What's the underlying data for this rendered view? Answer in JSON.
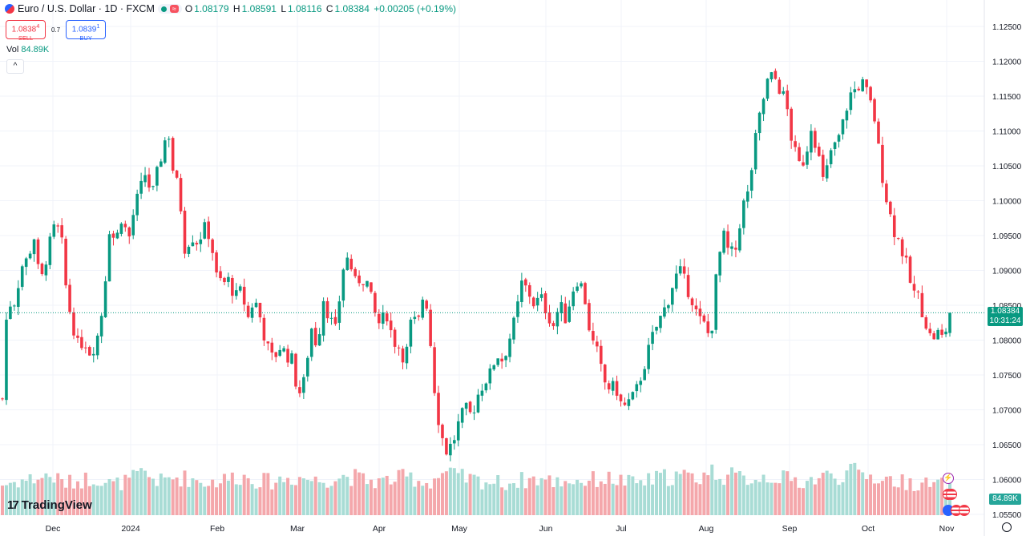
{
  "header": {
    "symbol": "Euro / U.S. Dollar · 1D · FXCM",
    "wave_icon": "≈",
    "o_label": "O",
    "o": "1.08179",
    "h_label": "H",
    "h": "1.08591",
    "l_label": "L",
    "l": "1.08116",
    "c_label": "C",
    "c": "1.08384",
    "change": "+0.00205 (+0.19%)"
  },
  "trade": {
    "sell_price": "1.0838",
    "sell_sup": "4",
    "sell_label": "SELL",
    "spread": "0.7",
    "buy_price": "1.0839",
    "buy_sup": "1",
    "buy_label": "BUY"
  },
  "volume": {
    "label": "Vol",
    "value": "84.89K"
  },
  "collapse_icon": "chevron-up-icon",
  "collapse_glyph": "^",
  "last_price": {
    "price": "1.08384",
    "countdown": "10:31:24"
  },
  "logo": {
    "mark": "17",
    "text": "TradingView"
  },
  "colors": {
    "up": "#089981",
    "down": "#f23645",
    "vol_up": "#a8dcd5",
    "vol_down": "#f4a7ab",
    "grid": "#f0f3fa"
  },
  "chart_data": {
    "type": "candlestick",
    "y_axis_ticks": [
      "1.12500",
      "1.12000",
      "1.11500",
      "1.11000",
      "1.10500",
      "1.10000",
      "1.09500",
      "1.09000",
      "1.08500",
      "1.08000",
      "1.07500",
      "1.07000",
      "1.06500",
      "1.06000",
      "1.05500"
    ],
    "x_axis_ticks": [
      "Dec",
      "2024",
      "Feb",
      "Mar",
      "Apr",
      "May",
      "Jun",
      "Jul",
      "Aug",
      "Sep",
      "Oct",
      "Nov"
    ],
    "ylim": [
      1.0535,
      1.1275
    ],
    "close_path": [
      [
        0,
        1.0715
      ],
      [
        3,
        1.085
      ],
      [
        8,
        1.0855
      ],
      [
        12,
        1.0905
      ],
      [
        16,
        1.0915
      ],
      [
        20,
        1.095
      ],
      [
        24,
        1.0875
      ],
      [
        28,
        1.092
      ],
      [
        33,
        1.096
      ],
      [
        37,
        1.0955
      ],
      [
        41,
        1.086
      ],
      [
        45,
        1.082
      ],
      [
        48,
        1.079
      ],
      [
        52,
        1.08
      ],
      [
        56,
        1.078
      ],
      [
        60,
        1.08
      ],
      [
        64,
        1.085
      ],
      [
        68,
        1.096
      ],
      [
        72,
        1.094
      ],
      [
        76,
        1.098
      ],
      [
        80,
        1.094
      ],
      [
        84,
        1.099
      ],
      [
        87,
        1.101
      ],
      [
        91,
        1.104
      ],
      [
        95,
        1.1005
      ],
      [
        99,
        1.1045
      ],
      [
        103,
        1.1085
      ],
      [
        106,
        1.1095
      ],
      [
        109,
        1.103
      ],
      [
        112,
        1.102
      ],
      [
        116,
        1.093
      ],
      [
        120,
        1.095
      ],
      [
        124,
        1.094
      ],
      [
        128,
        1.096
      ],
      [
        132,
        1.095
      ],
      [
        136,
        1.089
      ],
      [
        140,
        1.088
      ],
      [
        144,
        1.0885
      ],
      [
        148,
        1.086
      ],
      [
        152,
        1.087
      ],
      [
        156,
        1.083
      ],
      [
        160,
        1.086
      ],
      [
        164,
        1.083
      ],
      [
        168,
        1.079
      ],
      [
        172,
        1.077
      ],
      [
        176,
        1.079
      ],
      [
        180,
        1.078
      ],
      [
        184,
        1.077
      ],
      [
        188,
        1.072
      ],
      [
        192,
        1.074
      ],
      [
        196,
        1.082
      ],
      [
        200,
        1.079
      ],
      [
        204,
        1.086
      ],
      [
        208,
        1.083
      ],
      [
        212,
        1.081
      ],
      [
        216,
        1.09
      ],
      [
        220,
        1.092
      ],
      [
        224,
        1.088
      ],
      [
        228,
        1.089
      ],
      [
        232,
        1.088
      ],
      [
        236,
        1.084
      ],
      [
        240,
        1.082
      ],
      [
        244,
        1.084
      ],
      [
        248,
        1.08
      ],
      [
        252,
        1.079
      ],
      [
        256,
        1.077
      ],
      [
        260,
        1.083
      ],
      [
        264,
        1.082
      ],
      [
        267,
        1.086
      ],
      [
        270,
        1.085
      ],
      [
        274,
        1.074
      ],
      [
        278,
        1.067
      ],
      [
        282,
        1.064
      ],
      [
        286,
        1.065
      ],
      [
        290,
        1.068
      ],
      [
        294,
        1.07
      ],
      [
        298,
        1.069
      ],
      [
        302,
        1.072
      ],
      [
        306,
        1.074
      ],
      [
        310,
        1.075
      ],
      [
        314,
        1.078
      ],
      [
        318,
        1.077
      ],
      [
        322,
        1.08
      ],
      [
        326,
        1.083
      ],
      [
        330,
        1.088
      ],
      [
        334,
        1.087
      ],
      [
        338,
        1.085
      ],
      [
        342,
        1.086
      ],
      [
        346,
        1.084
      ],
      [
        350,
        1.082
      ],
      [
        354,
        1.085
      ],
      [
        358,
        1.083
      ],
      [
        362,
        1.087
      ],
      [
        366,
        1.089
      ],
      [
        370,
        1.086
      ],
      [
        374,
        1.08
      ],
      [
        378,
        1.078
      ],
      [
        382,
        1.074
      ],
      [
        386,
        1.073
      ],
      [
        390,
        1.073
      ],
      [
        394,
        1.07
      ],
      [
        398,
        1.071
      ],
      [
        402,
        1.072
      ],
      [
        406,
        1.075
      ],
      [
        410,
        1.078
      ],
      [
        414,
        1.081
      ],
      [
        418,
        1.083
      ],
      [
        422,
        1.085
      ],
      [
        426,
        1.088
      ],
      [
        430,
        1.09
      ],
      [
        434,
        1.088
      ],
      [
        438,
        1.086
      ],
      [
        442,
        1.083
      ],
      [
        446,
        1.082
      ],
      [
        450,
        1.08
      ],
      [
        454,
        1.09
      ],
      [
        458,
        1.095
      ],
      [
        462,
        1.092
      ],
      [
        466,
        1.093
      ],
      [
        470,
        1.099
      ],
      [
        474,
        1.101
      ],
      [
        478,
        1.108
      ],
      [
        482,
        1.113
      ],
      [
        486,
        1.117
      ],
      [
        490,
        1.118
      ],
      [
        494,
        1.116
      ],
      [
        498,
        1.114
      ],
      [
        502,
        1.108
      ],
      [
        506,
        1.105
      ],
      [
        510,
        1.106
      ],
      [
        514,
        1.111
      ],
      [
        518,
        1.107
      ],
      [
        522,
        1.102
      ],
      [
        526,
        1.107
      ],
      [
        530,
        1.108
      ],
      [
        534,
        1.111
      ],
      [
        538,
        1.115
      ],
      [
        542,
        1.116
      ],
      [
        546,
        1.117
      ],
      [
        550,
        1.115
      ],
      [
        554,
        1.112
      ],
      [
        558,
        1.105
      ],
      [
        562,
        1.1
      ],
      [
        566,
        1.096
      ],
      [
        570,
        1.094
      ],
      [
        574,
        1.091
      ],
      [
        578,
        1.087
      ],
      [
        582,
        1.086
      ],
      [
        586,
        1.083
      ],
      [
        590,
        1.08
      ],
      [
        594,
        1.081
      ],
      [
        598,
        1.08
      ],
      [
        602,
        1.0838
      ]
    ],
    "volume_path": [
      [
        0,
        40
      ],
      [
        10,
        45
      ],
      [
        20,
        48
      ],
      [
        30,
        52
      ],
      [
        40,
        42
      ],
      [
        50,
        46
      ],
      [
        60,
        50
      ],
      [
        70,
        40
      ],
      [
        80,
        45
      ],
      [
        90,
        55
      ],
      [
        100,
        44
      ],
      [
        110,
        50
      ],
      [
        120,
        48
      ],
      [
        130,
        43
      ],
      [
        140,
        46
      ],
      [
        150,
        52
      ],
      [
        160,
        47
      ],
      [
        170,
        44
      ],
      [
        180,
        48
      ],
      [
        190,
        50
      ],
      [
        200,
        45
      ],
      [
        210,
        49
      ],
      [
        220,
        52
      ],
      [
        230,
        46
      ],
      [
        240,
        44
      ],
      [
        250,
        48
      ],
      [
        260,
        50
      ],
      [
        270,
        42
      ],
      [
        280,
        55
      ],
      [
        290,
        50
      ],
      [
        300,
        46
      ],
      [
        310,
        44
      ],
      [
        320,
        42
      ],
      [
        330,
        46
      ],
      [
        340,
        48
      ],
      [
        350,
        44
      ],
      [
        360,
        46
      ],
      [
        370,
        45
      ],
      [
        380,
        48
      ],
      [
        390,
        47
      ],
      [
        400,
        42
      ],
      [
        410,
        45
      ],
      [
        420,
        50
      ],
      [
        430,
        52
      ],
      [
        440,
        48
      ],
      [
        450,
        58
      ],
      [
        460,
        52
      ],
      [
        470,
        48
      ],
      [
        480,
        50
      ],
      [
        490,
        52
      ],
      [
        500,
        46
      ],
      [
        510,
        44
      ],
      [
        520,
        50
      ],
      [
        530,
        52
      ],
      [
        540,
        56
      ],
      [
        550,
        52
      ],
      [
        560,
        48
      ],
      [
        570,
        44
      ],
      [
        580,
        42
      ],
      [
        590,
        40
      ],
      [
        602,
        40
      ]
    ],
    "last_value": 1.08384
  }
}
